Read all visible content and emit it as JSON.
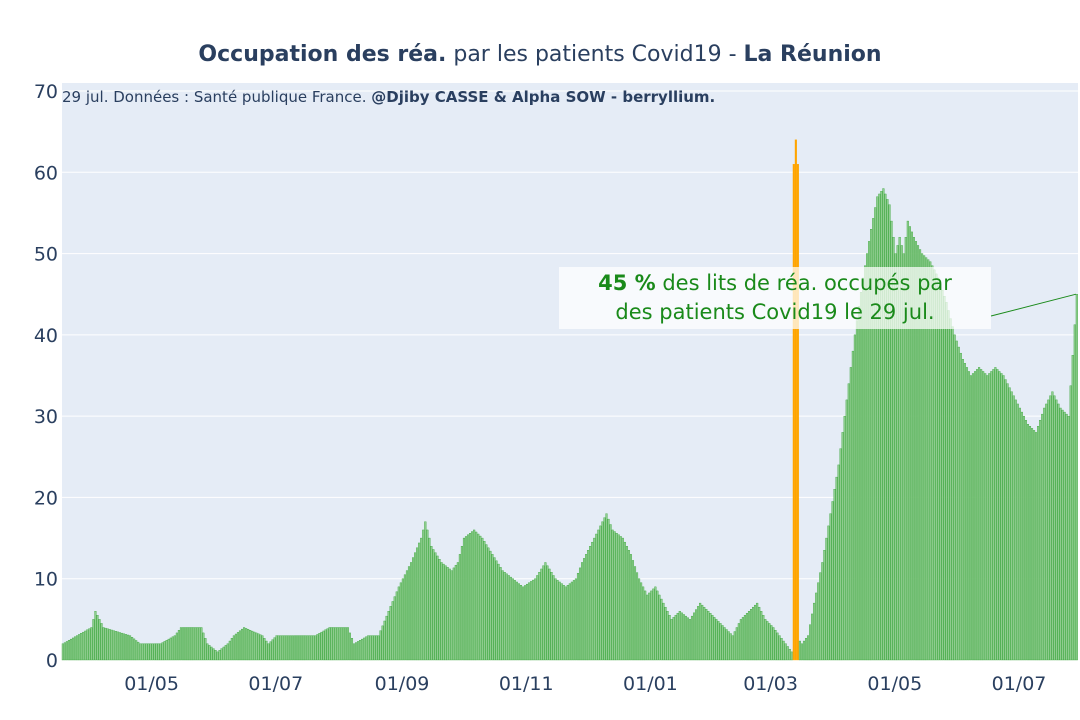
{
  "title": {
    "bold1": "Occupation des réa.",
    "normal": " par les patients Covid19 - ",
    "bold2": "La Réunion"
  },
  "subtitle": {
    "normal": "29 jul. Données : Santé publique France. ",
    "bold": "@Djiby CASSE & Alpha SOW - berryllium."
  },
  "annotation": {
    "value": "45  %",
    "line1_rest": " des lits de réa. occupés par",
    "line2": "des patients Covid19 le 29 jul."
  },
  "colors": {
    "bar": "#2ca02c",
    "bar_fill": "#8fcc8f",
    "highlight": "#ffa500",
    "background": "#e5ecf6",
    "text": "#2a3f5f",
    "annotation_text": "#1a8a1a"
  },
  "chart_data": {
    "type": "bar",
    "x_range": [
      "2020-03-18",
      "2021-07-29"
    ],
    "x_tick_labels": [
      "01/05",
      "01/07",
      "01/09",
      "01/11",
      "01/01",
      "01/03",
      "01/05",
      "01/07"
    ],
    "ylim": [
      0,
      70
    ],
    "y_ticks": [
      0,
      10,
      20,
      30,
      40,
      50,
      60,
      70
    ],
    "grid": true,
    "highlight_dates": [
      "2021-03-12",
      "2021-03-13",
      "2021-03-14"
    ],
    "keypoints": [
      [
        "2020-03-18",
        2
      ],
      [
        "2020-03-25",
        3
      ],
      [
        "2020-04-01",
        4
      ],
      [
        "2020-04-03",
        6
      ],
      [
        "2020-04-07",
        4
      ],
      [
        "2020-04-20",
        3
      ],
      [
        "2020-04-25",
        2
      ],
      [
        "2020-05-05",
        2
      ],
      [
        "2020-05-12",
        3
      ],
      [
        "2020-05-15",
        4
      ],
      [
        "2020-05-25",
        4
      ],
      [
        "2020-05-28",
        2
      ],
      [
        "2020-06-02",
        1
      ],
      [
        "2020-06-07",
        2
      ],
      [
        "2020-06-10",
        3
      ],
      [
        "2020-06-15",
        4
      ],
      [
        "2020-06-24",
        3
      ],
      [
        "2020-06-27",
        2
      ],
      [
        "2020-07-01",
        3
      ],
      [
        "2020-07-20",
        3
      ],
      [
        "2020-07-27",
        4
      ],
      [
        "2020-08-05",
        4
      ],
      [
        "2020-08-08",
        2
      ],
      [
        "2020-08-15",
        3
      ],
      [
        "2020-08-20",
        3
      ],
      [
        "2020-08-25",
        6
      ],
      [
        "2020-08-30",
        9
      ],
      [
        "2020-09-05",
        12
      ],
      [
        "2020-09-10",
        15
      ],
      [
        "2020-09-12",
        17
      ],
      [
        "2020-09-15",
        14
      ],
      [
        "2020-09-20",
        12
      ],
      [
        "2020-09-25",
        11
      ],
      [
        "2020-09-28",
        12
      ],
      [
        "2020-10-01",
        15
      ],
      [
        "2020-10-06",
        16
      ],
      [
        "2020-10-10",
        15
      ],
      [
        "2020-10-15",
        13
      ],
      [
        "2020-10-20",
        11
      ],
      [
        "2020-10-25",
        10
      ],
      [
        "2020-10-30",
        9
      ],
      [
        "2020-11-05",
        10
      ],
      [
        "2020-11-10",
        12
      ],
      [
        "2020-11-15",
        10
      ],
      [
        "2020-11-20",
        9
      ],
      [
        "2020-11-25",
        10
      ],
      [
        "2020-11-28",
        12
      ],
      [
        "2020-12-02",
        14
      ],
      [
        "2020-12-06",
        16
      ],
      [
        "2020-12-10",
        18
      ],
      [
        "2020-12-13",
        16
      ],
      [
        "2020-12-18",
        15
      ],
      [
        "2020-12-22",
        13
      ],
      [
        "2020-12-26",
        10
      ],
      [
        "2020-12-30",
        8
      ],
      [
        "2021-01-03",
        9
      ],
      [
        "2021-01-07",
        7
      ],
      [
        "2021-01-11",
        5
      ],
      [
        "2021-01-15",
        6
      ],
      [
        "2021-01-20",
        5
      ],
      [
        "2021-01-25",
        7
      ],
      [
        "2021-01-29",
        6
      ],
      [
        "2021-02-02",
        5
      ],
      [
        "2021-02-06",
        4
      ],
      [
        "2021-02-10",
        3
      ],
      [
        "2021-02-14",
        5
      ],
      [
        "2021-02-18",
        6
      ],
      [
        "2021-02-22",
        7
      ],
      [
        "2021-02-26",
        5
      ],
      [
        "2021-03-02",
        4
      ],
      [
        "2021-03-05",
        3
      ],
      [
        "2021-03-08",
        2
      ],
      [
        "2021-03-11",
        1
      ],
      [
        "2021-03-13",
        3
      ],
      [
        "2021-03-16",
        2
      ],
      [
        "2021-03-19",
        3
      ],
      [
        "2021-03-22",
        7
      ],
      [
        "2021-03-26",
        12
      ],
      [
        "2021-03-30",
        18
      ],
      [
        "2021-04-03",
        24
      ],
      [
        "2021-04-07",
        32
      ],
      [
        "2021-04-11",
        40
      ],
      [
        "2021-04-15",
        47
      ],
      [
        "2021-04-19",
        53
      ],
      [
        "2021-04-22",
        57
      ],
      [
        "2021-04-25",
        58
      ],
      [
        "2021-04-28",
        56
      ],
      [
        "2021-05-01",
        50
      ],
      [
        "2021-05-03",
        52
      ],
      [
        "2021-05-05",
        50
      ],
      [
        "2021-05-07",
        54
      ],
      [
        "2021-05-10",
        52
      ],
      [
        "2021-05-14",
        50
      ],
      [
        "2021-05-18",
        49
      ],
      [
        "2021-05-22",
        47
      ],
      [
        "2021-05-26",
        44
      ],
      [
        "2021-05-30",
        40
      ],
      [
        "2021-06-03",
        37
      ],
      [
        "2021-06-07",
        35
      ],
      [
        "2021-06-11",
        36
      ],
      [
        "2021-06-15",
        35
      ],
      [
        "2021-06-19",
        36
      ],
      [
        "2021-06-23",
        35
      ],
      [
        "2021-06-27",
        33
      ],
      [
        "2021-07-01",
        31
      ],
      [
        "2021-07-05",
        29
      ],
      [
        "2021-07-09",
        28
      ],
      [
        "2021-07-13",
        31
      ],
      [
        "2021-07-17",
        33
      ],
      [
        "2021-07-21",
        31
      ],
      [
        "2021-07-25",
        30
      ],
      [
        "2021-07-29",
        45
      ]
    ]
  }
}
